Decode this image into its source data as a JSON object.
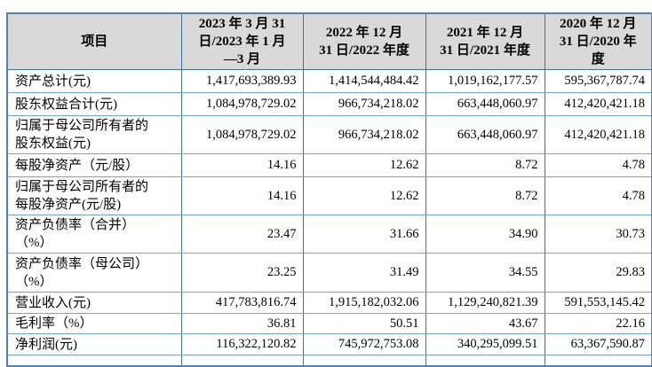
{
  "table": {
    "header": [
      "项目",
      "2023 年 3 月 31\n日/2023 年 1 月\n—3 月",
      "2022 年 12 月\n31 日/2022 年度",
      "2021 年 12 月\n31 日/2021 年度",
      "2020 年 12 月\n31 日/2020 年\n度"
    ],
    "rows": [
      {
        "label": "资产总计(元)",
        "values": [
          "1,417,693,389.93",
          "1,414,544,484.42",
          "1,019,162,177.57",
          "595,367,787.74"
        ]
      },
      {
        "label": "股东权益合计(元)",
        "values": [
          "1,084,978,729.02",
          "966,734,218.02",
          "663,448,060.97",
          "412,420,421.18"
        ]
      },
      {
        "label": "归属于母公司所有者的\n股东权益(元)",
        "values": [
          "1,084,978,729.02",
          "966,734,218.02",
          "663,448,060.97",
          "412,420,421.18"
        ]
      },
      {
        "label": "每股净资产（元/股）",
        "values": [
          "14.16",
          "12.62",
          "8.72",
          "4.78"
        ]
      },
      {
        "label": "归属于母公司所有者的\n每股净资产(元/股)",
        "values": [
          "14.16",
          "12.62",
          "8.72",
          "4.78"
        ]
      },
      {
        "label": "资产负债率（合并）\n（%）",
        "values": [
          "23.47",
          "31.66",
          "34.90",
          "30.73"
        ]
      },
      {
        "label": "资产负债率（母公司）\n（%）",
        "values": [
          "23.25",
          "31.49",
          "34.55",
          "29.83"
        ]
      },
      {
        "label": "营业收入(元)",
        "values": [
          "417,783,816.74",
          "1,915,182,032.06",
          "1,129,240,821.39",
          "591,553,145.42"
        ]
      },
      {
        "label": "毛利率（%）",
        "values": [
          "36.81",
          "50.51",
          "43.67",
          "22.16"
        ]
      },
      {
        "label": "净利润(元)",
        "values": [
          "116,322,120.82",
          "745,972,753.08",
          "340,295,099.51",
          "63,367,590.87"
        ]
      }
    ],
    "highlight": {
      "row_label": "净利润(元)",
      "column": "2022 年 12 月 31 日/2022 年度",
      "value": "745,972,753.08",
      "border_color": "#e8291c"
    },
    "colors": {
      "header_background": "#d9d9d9",
      "grid_vertical": "#41719c",
      "grid_horizontal": "#71a3d4",
      "outer_border": "#4f81bd",
      "text": "#000000"
    }
  }
}
